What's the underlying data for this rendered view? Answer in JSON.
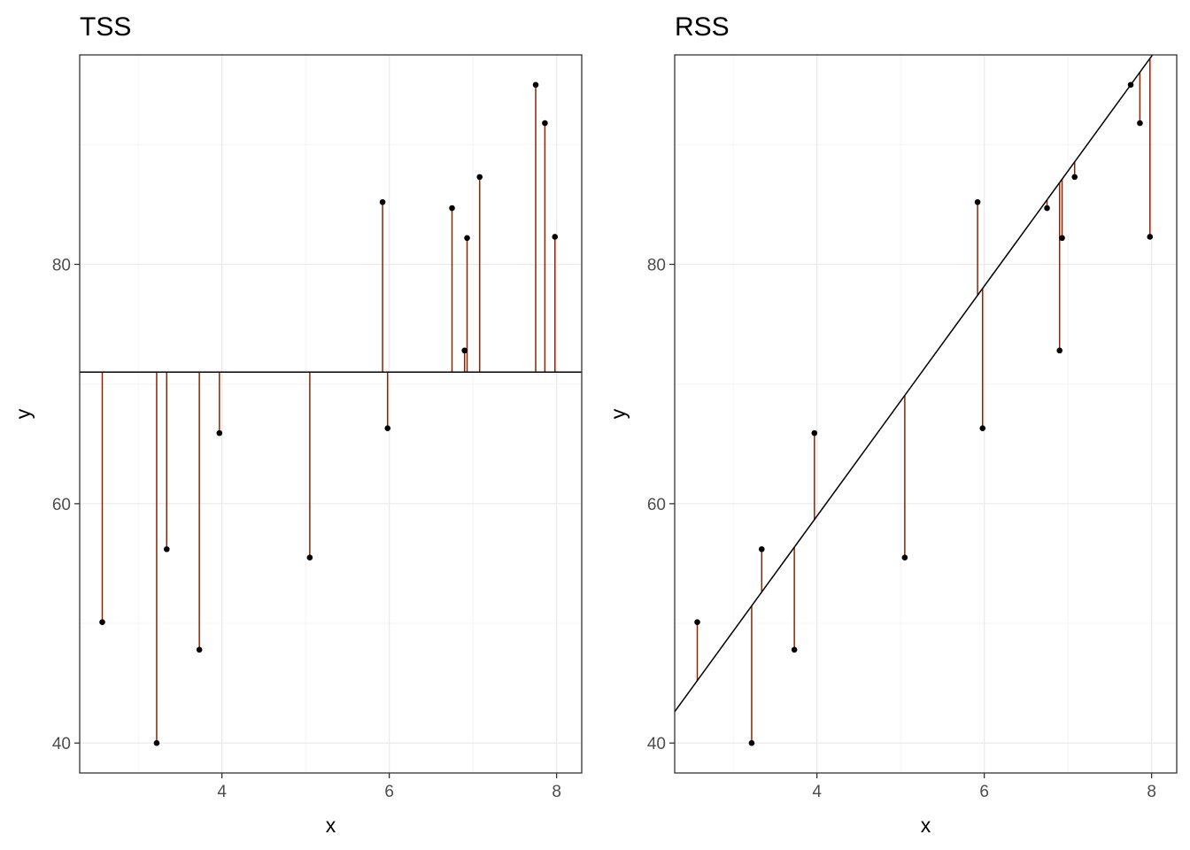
{
  "chart_data": [
    {
      "type": "scatter",
      "title": "TSS",
      "xlabel": "x",
      "ylabel": "y",
      "xlim": [
        2.3,
        8.3
      ],
      "ylim": [
        37.5,
        97.5
      ],
      "xticks": [
        4,
        6,
        8
      ],
      "yticks": [
        40,
        60,
        80
      ],
      "grid": true,
      "reference_line": {
        "kind": "horizontal_mean",
        "y": 71.0
      },
      "segments": "vertical from each point to the mean line",
      "points": [
        {
          "x": 2.57,
          "y": 50.1
        },
        {
          "x": 3.22,
          "y": 40.0
        },
        {
          "x": 3.34,
          "y": 56.2
        },
        {
          "x": 3.73,
          "y": 47.8
        },
        {
          "x": 3.97,
          "y": 65.9
        },
        {
          "x": 5.05,
          "y": 55.5
        },
        {
          "x": 5.92,
          "y": 85.2
        },
        {
          "x": 5.98,
          "y": 66.3
        },
        {
          "x": 6.75,
          "y": 84.7
        },
        {
          "x": 6.9,
          "y": 72.8
        },
        {
          "x": 6.93,
          "y": 82.2
        },
        {
          "x": 7.08,
          "y": 87.3
        },
        {
          "x": 7.75,
          "y": 95.0
        },
        {
          "x": 7.86,
          "y": 91.8
        },
        {
          "x": 7.98,
          "y": 82.3
        }
      ]
    },
    {
      "type": "scatter",
      "title": "RSS",
      "xlabel": "x",
      "ylabel": "y",
      "xlim": [
        2.3,
        8.3
      ],
      "ylim": [
        37.5,
        97.5
      ],
      "xticks": [
        4,
        6,
        8
      ],
      "yticks": [
        40,
        60,
        80
      ],
      "grid": true,
      "reference_line": {
        "kind": "regression",
        "intercept": 20.52,
        "slope": 9.61
      },
      "segments": "vertical from each point to the fitted line",
      "points": [
        {
          "x": 2.57,
          "y": 50.1
        },
        {
          "x": 3.22,
          "y": 40.0
        },
        {
          "x": 3.34,
          "y": 56.2
        },
        {
          "x": 3.73,
          "y": 47.8
        },
        {
          "x": 3.97,
          "y": 65.9
        },
        {
          "x": 5.05,
          "y": 55.5
        },
        {
          "x": 5.92,
          "y": 85.2
        },
        {
          "x": 5.98,
          "y": 66.3
        },
        {
          "x": 6.75,
          "y": 84.7
        },
        {
          "x": 6.9,
          "y": 72.8
        },
        {
          "x": 6.93,
          "y": 82.2
        },
        {
          "x": 7.08,
          "y": 87.3
        },
        {
          "x": 7.75,
          "y": 95.0
        },
        {
          "x": 7.86,
          "y": 91.8
        },
        {
          "x": 7.98,
          "y": 82.3
        }
      ]
    }
  ],
  "colors": {
    "segment": "#8b2500",
    "point": "#000000",
    "line": "#000000",
    "grid_major": "#ebebeb",
    "grid_minor": "#f5f5f5",
    "panel_border": "#333333"
  }
}
